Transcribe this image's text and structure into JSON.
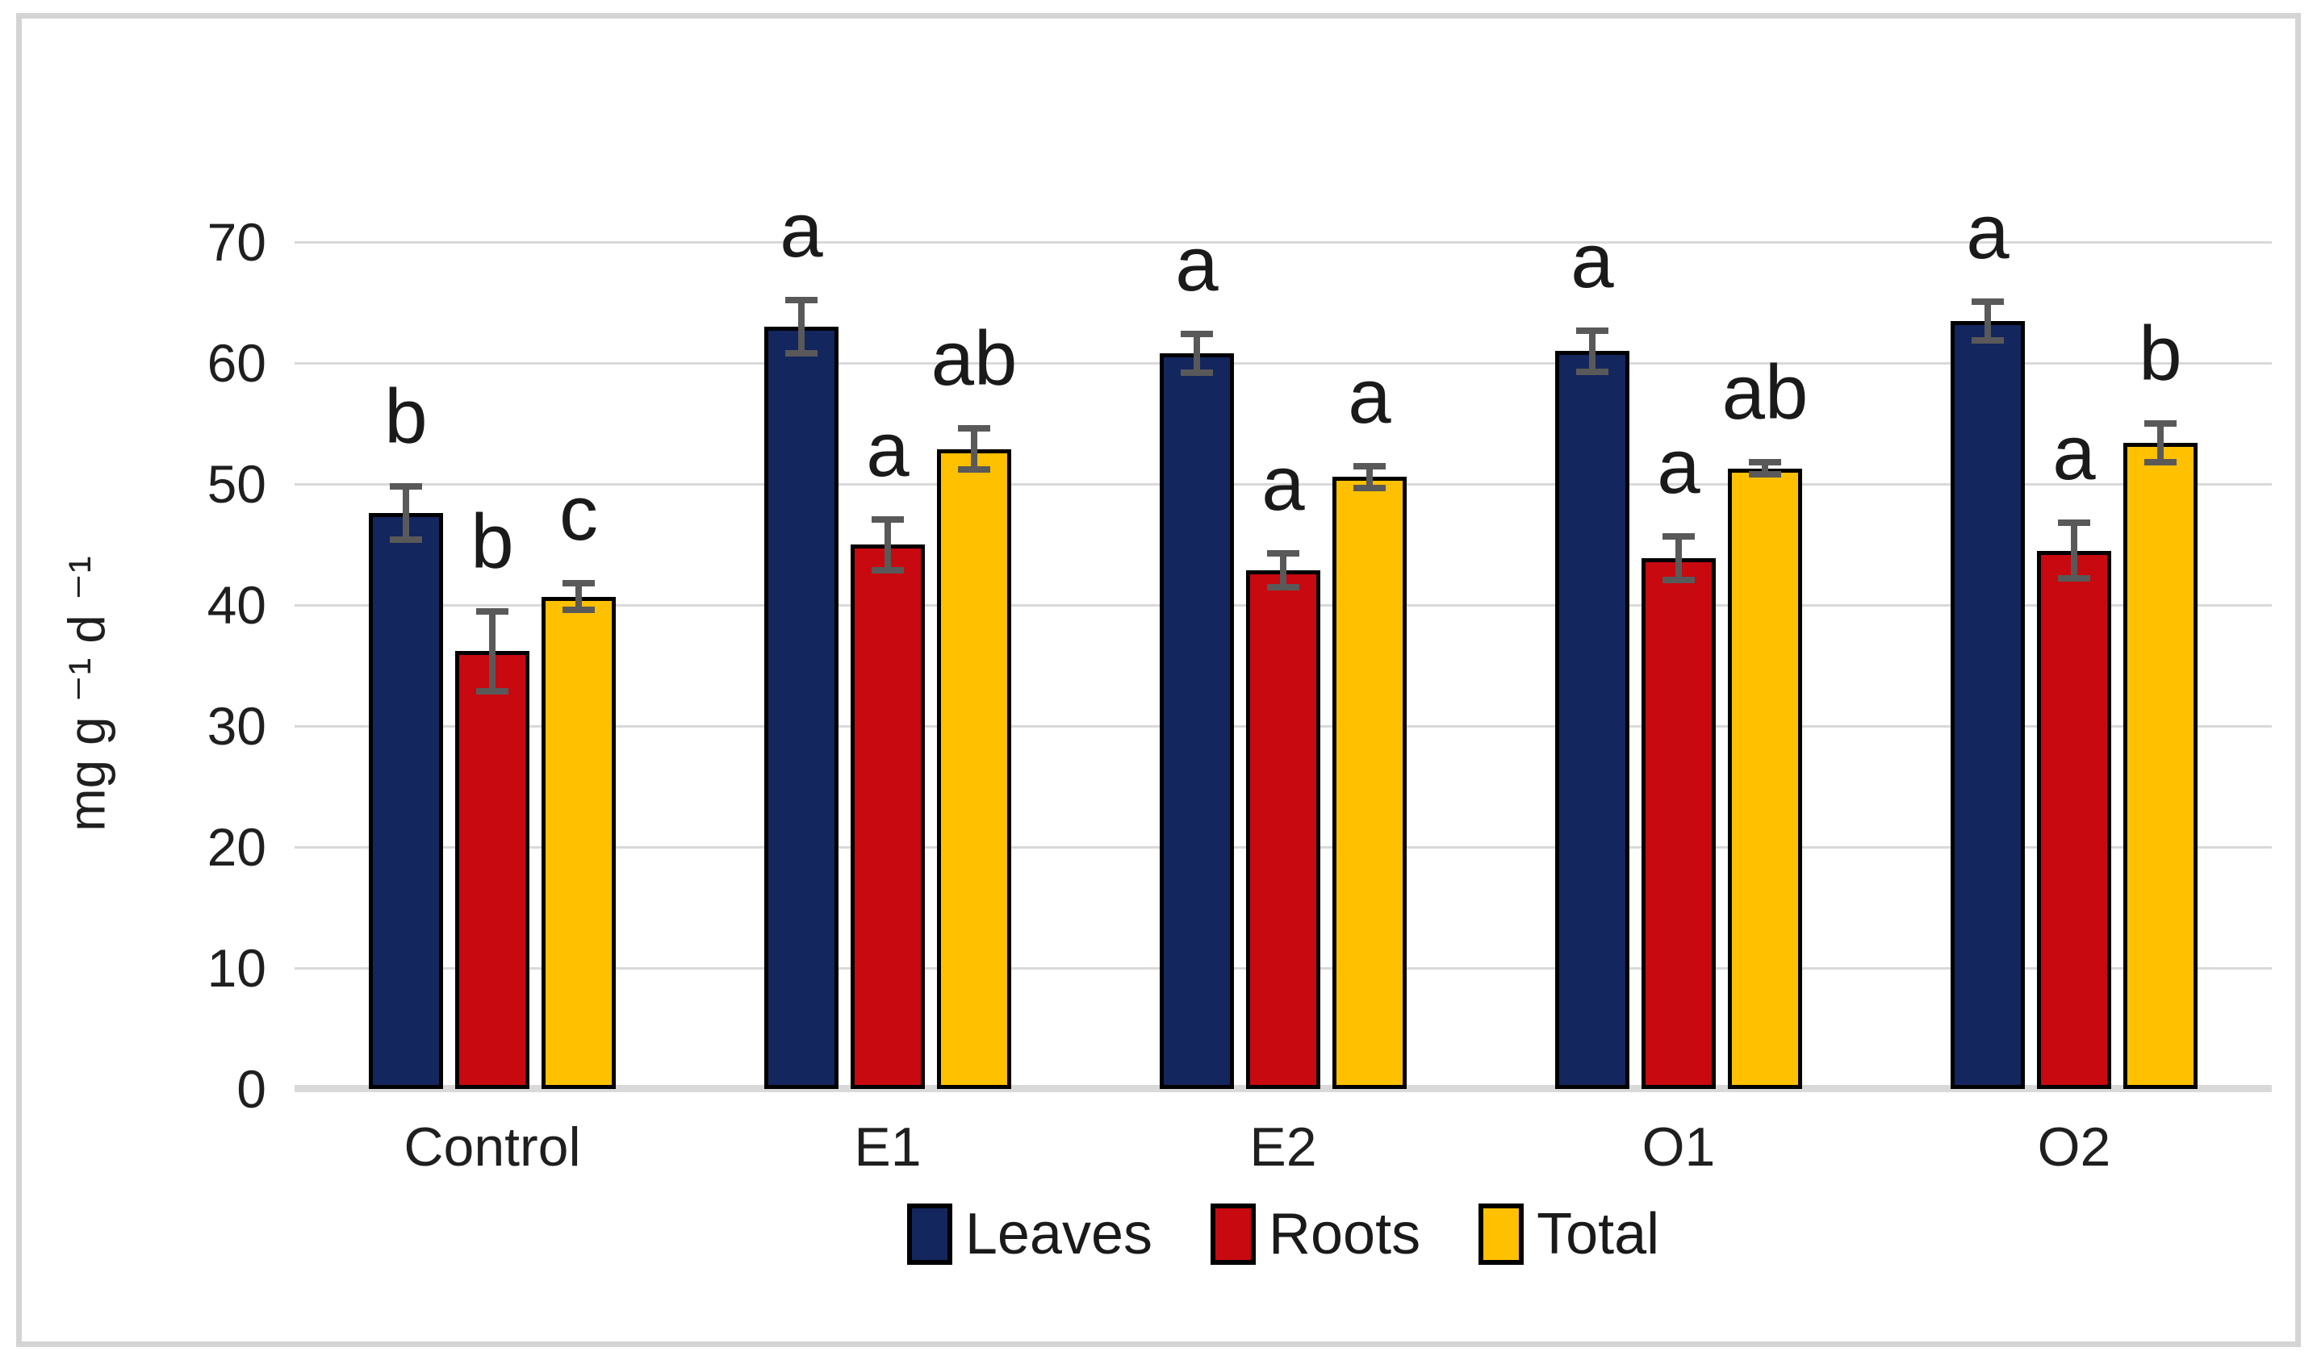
{
  "chart_data": {
    "type": "bar",
    "title": "",
    "xlabel": "",
    "ylabel": "mg g ⁻¹ d ⁻¹",
    "ylim": [
      0,
      70
    ],
    "yticks": [
      0,
      10,
      20,
      30,
      40,
      50,
      60,
      70
    ],
    "grid": "horizontal",
    "gridline_color": "#d9d9d9",
    "legend_position": "bottom",
    "bar_outline_color": "#000000",
    "error_bar_color": "#595959",
    "categories": [
      "Control",
      "E1",
      "E2",
      "O1",
      "O2"
    ],
    "series": [
      {
        "name": "Leaves",
        "color": "#14265e",
        "values": [
          47.6,
          63.0,
          60.8,
          61.0,
          63.5
        ],
        "errors": [
          2.2,
          2.2,
          1.6,
          1.7,
          1.6
        ],
        "sig_letters": [
          "b",
          "a",
          "a",
          "a",
          "a"
        ]
      },
      {
        "name": "Roots",
        "color": "#c8090f",
        "values": [
          36.2,
          45.0,
          42.9,
          43.9,
          44.5
        ],
        "errors": [
          3.3,
          2.1,
          1.4,
          1.8,
          2.3
        ],
        "sig_letters": [
          "b",
          "a",
          "a",
          "a",
          "a"
        ]
      },
      {
        "name": "Total",
        "color": "#ffc000",
        "values": [
          40.7,
          52.9,
          50.6,
          51.3,
          53.4
        ],
        "errors": [
          1.1,
          1.7,
          0.9,
          0.5,
          1.6
        ],
        "sig_letters": [
          "c",
          "ab",
          "a",
          "ab",
          "b"
        ]
      }
    ]
  }
}
